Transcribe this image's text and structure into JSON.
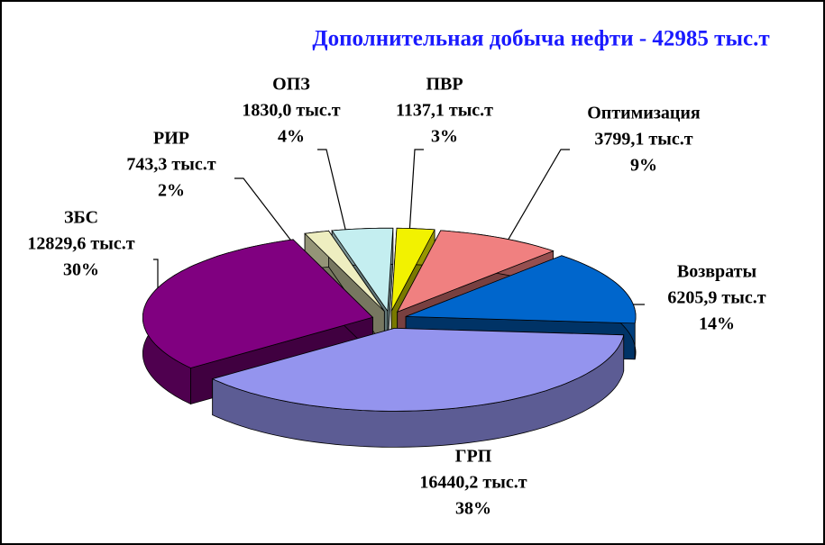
{
  "chart_data": {
    "type": "pie",
    "title": "Дополнительная добыча нефти - 42985 тыс.т",
    "categories": [
      "ОПЗ",
      "ПВР",
      "Оптимизация",
      "Возвраты",
      "ГРП",
      "ЗБС",
      "РИР"
    ],
    "values": [
      1830.0,
      1137.1,
      3799.1,
      6205.9,
      16440.2,
      12829.6,
      743.3
    ],
    "value_labels": [
      "1830,0 тыс.т",
      "1137,1 тыс.т",
      "3799,1 тыс.т",
      "6205,9 тыс.т",
      "16440,2 тыс.т",
      "12829,6 тыс.т",
      "743,3 тыс.т"
    ],
    "shares": [
      4,
      3,
      9,
      14,
      38,
      30,
      2
    ],
    "share_labels": [
      "4%",
      "3%",
      "9%",
      "14%",
      "38%",
      "30%",
      "2%"
    ],
    "colors": [
      "#c4eef0",
      "#f2f200",
      "#f08080",
      "#0066cc",
      "#9494ee",
      "#800080",
      "#eeeec0"
    ]
  }
}
